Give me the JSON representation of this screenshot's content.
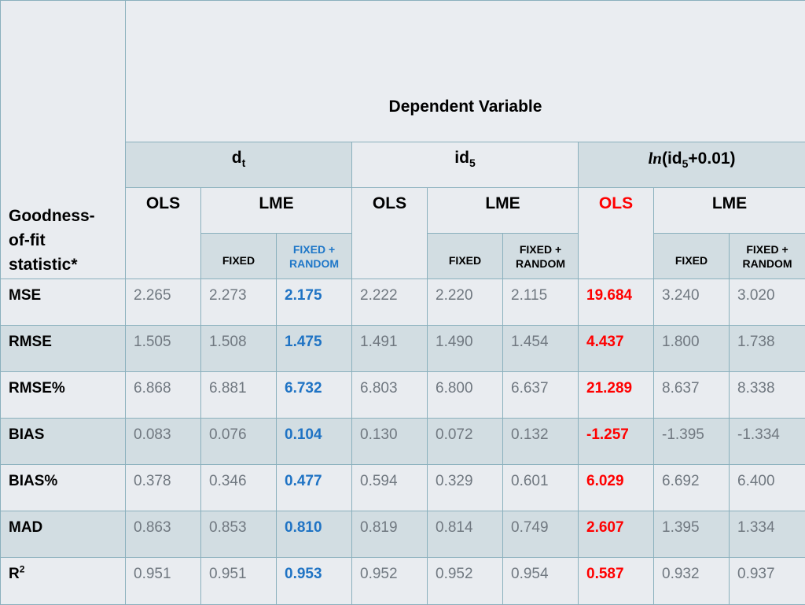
{
  "table": {
    "corner_label": "Goodness-\nof-fit\nstatistic*",
    "dependent_variable_label": "Dependent Variable",
    "groups": [
      {
        "main": "d",
        "sub": "t",
        "tail": ""
      },
      {
        "main": "id",
        "sub": "5",
        "tail": ""
      },
      {
        "prefix": "ln",
        "main": "(id",
        "sub": "5",
        "tail": "+0.01)"
      }
    ],
    "methods": {
      "ols": "OLS",
      "lme": "LME"
    },
    "sub_columns": {
      "fixed": "FIXED",
      "fixed_random_line1": "FIXED +",
      "fixed_random_line2": "RANDOM"
    },
    "rows": [
      {
        "label": "MSE",
        "values": [
          "2.265",
          "2.273",
          "2.175",
          "2.222",
          "2.220",
          "2.115",
          "19.684",
          "3.240",
          "3.020"
        ]
      },
      {
        "label": "RMSE",
        "values": [
          "1.505",
          "1.508",
          "1.475",
          "1.491",
          "1.490",
          "1.454",
          "4.437",
          "1.800",
          "1.738"
        ]
      },
      {
        "label": "RMSE%",
        "values": [
          "6.868",
          "6.881",
          "6.732",
          "6.803",
          "6.800",
          "6.637",
          "21.289",
          "8.637",
          "8.338"
        ]
      },
      {
        "label": "BIAS",
        "values": [
          "0.083",
          "0.076",
          "0.104",
          "0.130",
          "0.072",
          "0.132",
          "-1.257",
          "-1.395",
          "-1.334"
        ]
      },
      {
        "label": "BIAS%",
        "values": [
          "0.378",
          "0.346",
          "0.477",
          "0.594",
          "0.329",
          "0.601",
          "6.029",
          "6.692",
          "6.400"
        ]
      },
      {
        "label": "MAD",
        "values": [
          "0.863",
          "0.853",
          "0.810",
          "0.819",
          "0.814",
          "0.749",
          "2.607",
          "1.395",
          "1.334"
        ]
      },
      {
        "label": "R",
        "label_sup": "2",
        "values": [
          "0.951",
          "0.951",
          "0.953",
          "0.952",
          "0.952",
          "0.954",
          "0.587",
          "0.932",
          "0.937"
        ]
      }
    ],
    "colors": {
      "highlight_blue": "#1f73c4",
      "highlight_red": "#ff0000",
      "header_band": "#d2dde2",
      "row_band": "#d2dde2",
      "border": "#8ab0bd",
      "muted_value": "#707880"
    }
  }
}
